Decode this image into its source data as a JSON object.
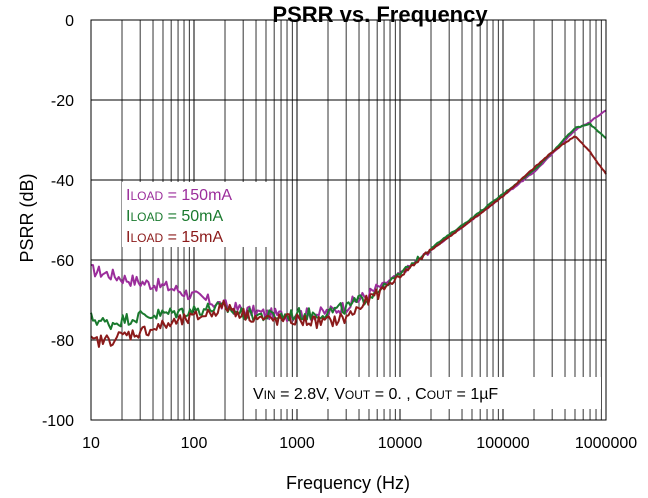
{
  "chart_data": {
    "type": "line",
    "title": "PSRR vs. Frequency",
    "xlabel": "Frequency (Hz)",
    "ylabel": "PSRR (dB)",
    "x_scale": "log",
    "xlim": [
      10,
      1000000
    ],
    "ylim": [
      -100,
      0
    ],
    "x_ticks": [
      "10",
      "100",
      "1000",
      "10000",
      "100000",
      "1000000"
    ],
    "y_ticks": [
      "0",
      "-20",
      "-40",
      "-60",
      "-80",
      "-100"
    ],
    "grid": true,
    "legend_placement": "center-left",
    "legend": [
      {
        "prefix": "I",
        "sub": "LOAD",
        "suffix": " = 150mA",
        "color": "#9b2d9b"
      },
      {
        "prefix": "I",
        "sub": "LOAD",
        "suffix": " = 50mA",
        "color": "#1a7a2e"
      },
      {
        "prefix": "I",
        "sub": "LOAD",
        "suffix": " = 15mA",
        "color": "#8b1a1a"
      }
    ],
    "annotation": {
      "parts": [
        {
          "t": "V",
          "sub": "IN",
          "after": " = 2.8V, V"
        },
        {
          "t": "",
          "sub": "OUT",
          "after": " = 0.    , C"
        },
        {
          "t": "",
          "sub": "OUT",
          "after": " = 1µF"
        }
      ]
    },
    "series": [
      {
        "name": "ILOAD = 150mA",
        "color": "#9b2d9b",
        "x": [
          10,
          15,
          20,
          30,
          50,
          70,
          100,
          150,
          200,
          300,
          500,
          700,
          1000,
          1500,
          2000,
          3000,
          5000,
          7000,
          10000,
          20000,
          50000,
          100000,
          200000,
          300000,
          500000,
          700000,
          1000000
        ],
        "y": [
          -62.5,
          -63.5,
          -64.5,
          -65.5,
          -66.5,
          -67.5,
          -69.0,
          -70.5,
          -71.5,
          -72.5,
          -73.5,
          -73.8,
          -73.5,
          -73.5,
          -73.0,
          -71.5,
          -68.5,
          -66.0,
          -63.5,
          -57.5,
          -50.0,
          -44.0,
          -38.0,
          -33.5,
          -27.5,
          -25.5,
          -22.5
        ]
      },
      {
        "name": "ILOAD = 50mA",
        "color": "#1a7a2e",
        "x": [
          10,
          15,
          20,
          30,
          50,
          70,
          100,
          150,
          200,
          300,
          500,
          700,
          1000,
          1500,
          2000,
          3000,
          5000,
          7000,
          10000,
          20000,
          50000,
          100000,
          200000,
          300000,
          500000,
          700000,
          1000000
        ],
        "y": [
          -74.5,
          -76.0,
          -75.0,
          -74.0,
          -73.5,
          -73.0,
          -72.5,
          -72.0,
          -72.0,
          -73.5,
          -74.0,
          -74.0,
          -73.5,
          -73.5,
          -73.0,
          -72.0,
          -69.0,
          -66.5,
          -63.5,
          -57.0,
          -49.5,
          -43.5,
          -37.5,
          -33.0,
          -27.0,
          -26.0,
          -29.5
        ]
      },
      {
        "name": "ILOAD = 15mA",
        "color": "#8b1a1a",
        "x": [
          10,
          15,
          20,
          30,
          50,
          70,
          100,
          150,
          200,
          300,
          500,
          700,
          1000,
          1500,
          2000,
          3000,
          5000,
          7000,
          10000,
          20000,
          50000,
          100000,
          200000,
          300000,
          500000,
          700000,
          1000000
        ],
        "y": [
          -80.5,
          -80.0,
          -79.0,
          -78.0,
          -76.5,
          -75.5,
          -74.5,
          -73.0,
          -71.5,
          -73.5,
          -75.0,
          -75.0,
          -75.0,
          -75.5,
          -75.5,
          -74.5,
          -70.0,
          -67.0,
          -64.0,
          -57.5,
          -50.0,
          -44.0,
          -37.0,
          -33.0,
          -29.0,
          -33.0,
          -38.5
        ]
      }
    ]
  }
}
